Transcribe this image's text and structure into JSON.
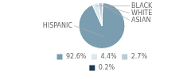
{
  "chart_data": {
    "type": "pie",
    "categories": [
      "HISPANIC",
      "BLACK",
      "WHITE",
      "ASIAN"
    ],
    "values": [
      92.6,
      4.4,
      2.7,
      0.2
    ],
    "value_labels": [
      "92.6%",
      "4.4%",
      "2.7%",
      "0.2%"
    ],
    "colors": [
      "#7a9db0",
      "#dce8ee",
      "#b8cdd6",
      "#1e3a52"
    ],
    "legend": "bottom"
  }
}
